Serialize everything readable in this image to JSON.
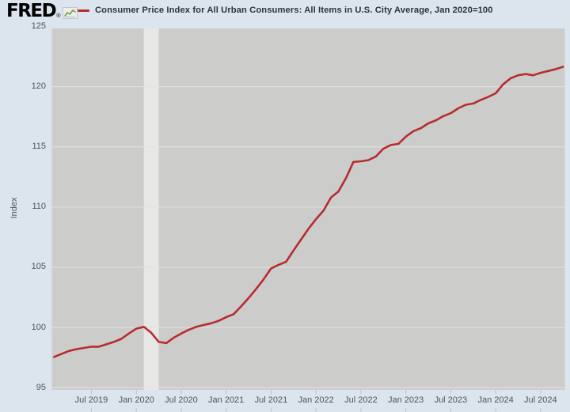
{
  "header": {
    "logo_text": "FRED",
    "logo_registered": "®"
  },
  "colors": {
    "page_background": "#dce4ee",
    "plot_background": "#cccccb",
    "gridline": "#e2e2e1",
    "recession_band": "#e7e7e6",
    "line": "#b72c2f",
    "tick_text": "#4d5460",
    "title_text": "#2b3342",
    "axis_tick_mark": "#b9c2d0",
    "logo_sparkline_green": "#69a33b"
  },
  "chart_data": {
    "type": "line",
    "title": "Consumer Price Index for All Urban Consumers: All Items in U.S. City Average, Jan 2020=100",
    "series_name": "Consumer Price Index for All Urban Consumers: All Items in U.S. City Average, Jan 2020=100",
    "xlabel": "",
    "ylabel": "Index",
    "ylim": [
      95,
      125
    ],
    "y_ticks": [
      95,
      100,
      105,
      110,
      115,
      120,
      125
    ],
    "x_tick_labels": [
      "Jul 2019",
      "Jan 2020",
      "Jul 2020",
      "Jan 2021",
      "Jul 2021",
      "Jan 2022",
      "Jul 2022",
      "Jan 2023",
      "Jul 2023",
      "Jan 2024",
      "Jul 2024"
    ],
    "grid": "horizontal-only",
    "legend_position": "top",
    "line_color": "#b72c2f",
    "recession_band": {
      "start": "Feb 2020",
      "end": "Apr 2020"
    },
    "months": [
      "Feb 2019",
      "Mar 2019",
      "Apr 2019",
      "May 2019",
      "Jun 2019",
      "Jul 2019",
      "Aug 2019",
      "Sep 2019",
      "Oct 2019",
      "Nov 2019",
      "Dec 2019",
      "Jan 2020",
      "Feb 2020",
      "Mar 2020",
      "Apr 2020",
      "May 2020",
      "Jun 2020",
      "Jul 2020",
      "Aug 2020",
      "Sep 2020",
      "Oct 2020",
      "Nov 2020",
      "Dec 2020",
      "Jan 2021",
      "Feb 2021",
      "Mar 2021",
      "Apr 2021",
      "May 2021",
      "Jun 2021",
      "Jul 2021",
      "Aug 2021",
      "Sep 2021",
      "Oct 2021",
      "Nov 2021",
      "Dec 2021",
      "Jan 2022",
      "Feb 2022",
      "Mar 2022",
      "Apr 2022",
      "May 2022",
      "Jun 2022",
      "Jul 2022",
      "Aug 2022",
      "Sep 2022",
      "Oct 2022",
      "Nov 2022",
      "Dec 2022",
      "Jan 2023",
      "Feb 2023",
      "Mar 2023",
      "Apr 2023",
      "May 2023",
      "Jun 2023",
      "Jul 2023",
      "Aug 2023",
      "Sep 2023",
      "Oct 2023",
      "Nov 2023",
      "Dec 2023",
      "Jan 2024",
      "Feb 2024",
      "Mar 2024",
      "Apr 2024",
      "May 2024",
      "Jun 2024",
      "Jul 2024",
      "Aug 2024",
      "Sep 2024",
      "Oct 2024"
    ],
    "values": [
      97.55,
      97.8,
      98.05,
      98.2,
      98.3,
      98.4,
      98.4,
      98.6,
      98.8,
      99.05,
      99.5,
      99.9,
      100.05,
      99.55,
      98.8,
      98.7,
      99.15,
      99.5,
      99.8,
      100.05,
      100.2,
      100.35,
      100.55,
      100.85,
      101.1,
      101.75,
      102.45,
      103.2,
      104.0,
      104.9,
      105.2,
      105.45,
      106.4,
      107.3,
      108.2,
      109.0,
      109.7,
      110.8,
      111.3,
      112.4,
      113.75,
      113.8,
      113.9,
      114.2,
      114.85,
      115.15,
      115.25,
      115.85,
      116.3,
      116.55,
      116.95,
      117.2,
      117.55,
      117.8,
      118.2,
      118.5,
      118.6,
      118.9,
      119.15,
      119.45,
      120.2,
      120.7,
      120.95,
      121.05,
      120.95,
      121.15,
      121.3,
      121.45,
      121.65
    ]
  }
}
